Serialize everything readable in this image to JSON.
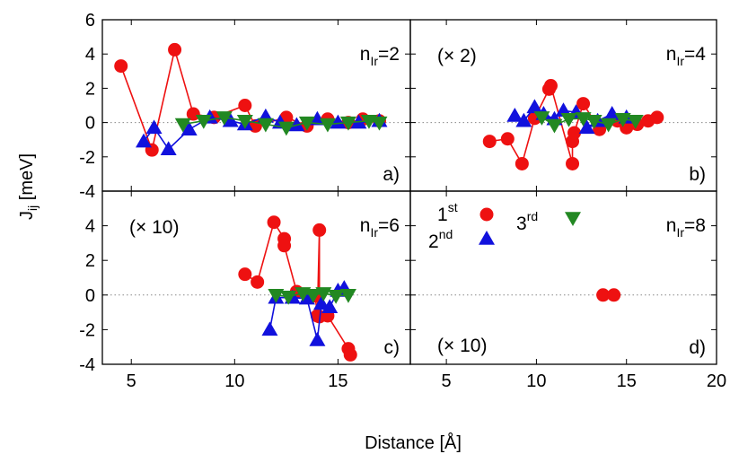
{
  "chart_data": {
    "type": "scatter",
    "xlabel": "Distance [Å]",
    "ylabel": "J",
    "ylabel_sub": "ij",
    "ylabel_unit": " [meV]",
    "colors": {
      "1st": "#ee1111",
      "2nd": "#1111dd",
      "3rd": "#228822"
    },
    "legend": {
      "entries": [
        {
          "key": "1st",
          "base": "1",
          "sup": "st",
          "marker": "circle"
        },
        {
          "key": "2nd",
          "base": "2",
          "sup": "nd",
          "marker": "triangle-up"
        },
        {
          "key": "3rd",
          "base": "3",
          "sup": "rd",
          "marker": "triangle-down"
        }
      ],
      "placement": "panel d, top-left"
    },
    "panels": [
      {
        "id": "a",
        "label": "a)",
        "nir_prefix": "n",
        "nir_sub": "Ir",
        "nir_value": "=2",
        "scale": "",
        "xlim": [
          3.6,
          18.5
        ],
        "ylim": [
          -4,
          6
        ],
        "xticks": [],
        "yticks": [
          6,
          4,
          2,
          0,
          -2,
          -4
        ],
        "series": [
          {
            "name": "1st",
            "x": [
              4.5,
              6.0,
              7.1,
              8.0,
              9.0,
              10.5,
              11.0,
              12.5,
              13.5,
              14.5,
              15.5,
              16.2,
              17.0
            ],
            "y": [
              3.3,
              -1.6,
              4.25,
              0.5,
              0.3,
              1.0,
              -0.2,
              0.3,
              -0.2,
              0.2,
              0.0,
              0.2,
              0.1
            ]
          },
          {
            "name": "2nd",
            "x": [
              5.6,
              6.1,
              6.8,
              7.8,
              8.8,
              9.8,
              10.5,
              11.5,
              12.2,
              13.0,
              14.0,
              15.0,
              16.0,
              17.0
            ],
            "y": [
              -1.1,
              -0.3,
              -1.55,
              -0.4,
              0.3,
              0.1,
              -0.1,
              0.35,
              0.0,
              -0.15,
              0.2,
              0.0,
              0.0,
              0.1
            ]
          },
          {
            "name": "3rd",
            "x": [
              7.5,
              8.5,
              9.5,
              10.5,
              11.5,
              12.5,
              13.5,
              14.5,
              15.5,
              16.5,
              17.0
            ],
            "y": [
              -0.1,
              0.1,
              0.3,
              0.1,
              -0.1,
              -0.3,
              0.0,
              -0.1,
              0.0,
              0.1,
              0.0
            ]
          }
        ]
      },
      {
        "id": "b",
        "label": "b)",
        "nir_prefix": "n",
        "nir_sub": "Ir",
        "nir_value": "=4",
        "scale": "(× 2)",
        "xlim": [
          3.0,
          20.0
        ],
        "ylim": [
          -4,
          6
        ],
        "xticks": [],
        "yticks": [],
        "series": [
          {
            "name": "1st",
            "x": [
              7.4,
              8.4,
              9.2,
              9.9,
              10.7,
              10.8,
              12.0,
              12.0,
              12.1,
              12.6,
              13.5,
              14.5,
              15.0,
              15.6,
              16.2,
              16.7
            ],
            "y": [
              -1.1,
              -0.95,
              -2.4,
              0.25,
              1.95,
              2.15,
              -2.4,
              -1.1,
              -0.6,
              1.1,
              -0.4,
              0.1,
              -0.3,
              -0.1,
              0.1,
              0.3
            ]
          },
          {
            "name": "2nd",
            "x": [
              8.8,
              9.3,
              9.9,
              10.4,
              11.0,
              11.5,
              12.2,
              12.8,
              13.4,
              14.2,
              15.0
            ],
            "y": [
              0.4,
              0.1,
              0.9,
              0.5,
              0.2,
              0.7,
              0.6,
              -0.3,
              0.1,
              0.5,
              0.3
            ]
          },
          {
            "name": "3rd",
            "x": [
              10.3,
              11.0,
              11.8,
              12.6,
              13.2,
              14.0,
              14.8,
              15.5
            ],
            "y": [
              0.3,
              -0.15,
              0.2,
              0.25,
              0.1,
              -0.1,
              0.2,
              0.1
            ]
          }
        ]
      },
      {
        "id": "c",
        "label": "c)",
        "nir_prefix": "n",
        "nir_sub": "Ir",
        "nir_value": "=6",
        "scale": "(× 10)",
        "xlim": [
          3.6,
          18.5
        ],
        "ylim": [
          -4,
          6
        ],
        "xticks": [
          5,
          10,
          15
        ],
        "yticks": [
          4,
          2,
          0,
          -2,
          -4
        ],
        "series": [
          {
            "name": "1st",
            "x": [
              10.5,
              11.1,
              11.9,
              12.4,
              12.4,
              13.0,
              13.9,
              14.0,
              14.1,
              14.1,
              14.5,
              15.5,
              15.6
            ],
            "y": [
              1.2,
              0.75,
              4.2,
              3.25,
              2.85,
              0.2,
              -0.05,
              -1.2,
              3.75,
              -1.25,
              -1.2,
              -3.1,
              -3.45
            ]
          },
          {
            "name": "2nd",
            "x": [
              11.7,
              12.0,
              12.8,
              13.5,
              14.0,
              14.2,
              14.6,
              15.0,
              15.3
            ],
            "y": [
              -2.0,
              -0.15,
              -0.15,
              -0.2,
              -2.6,
              -0.5,
              -0.7,
              0.25,
              0.4
            ]
          },
          {
            "name": "3rd",
            "x": [
              12.0,
              12.6,
              13.3,
              13.8,
              14.3,
              14.9,
              15.5
            ],
            "y": [
              0.0,
              -0.1,
              0.1,
              0.0,
              0.1,
              -0.05,
              0.0
            ]
          }
        ]
      },
      {
        "id": "d",
        "label": "d)",
        "nir_prefix": "n",
        "nir_sub": "Ir",
        "nir_value": "=8",
        "scale": "(× 10)",
        "xlim": [
          3.0,
          20.0
        ],
        "ylim": [
          -4,
          6
        ],
        "xticks": [
          5,
          10,
          15,
          20
        ],
        "yticks": [],
        "series": [
          {
            "name": "1st",
            "x": [
              13.7,
              14.3
            ],
            "y": [
              0.0,
              0.0
            ]
          }
        ]
      }
    ]
  }
}
